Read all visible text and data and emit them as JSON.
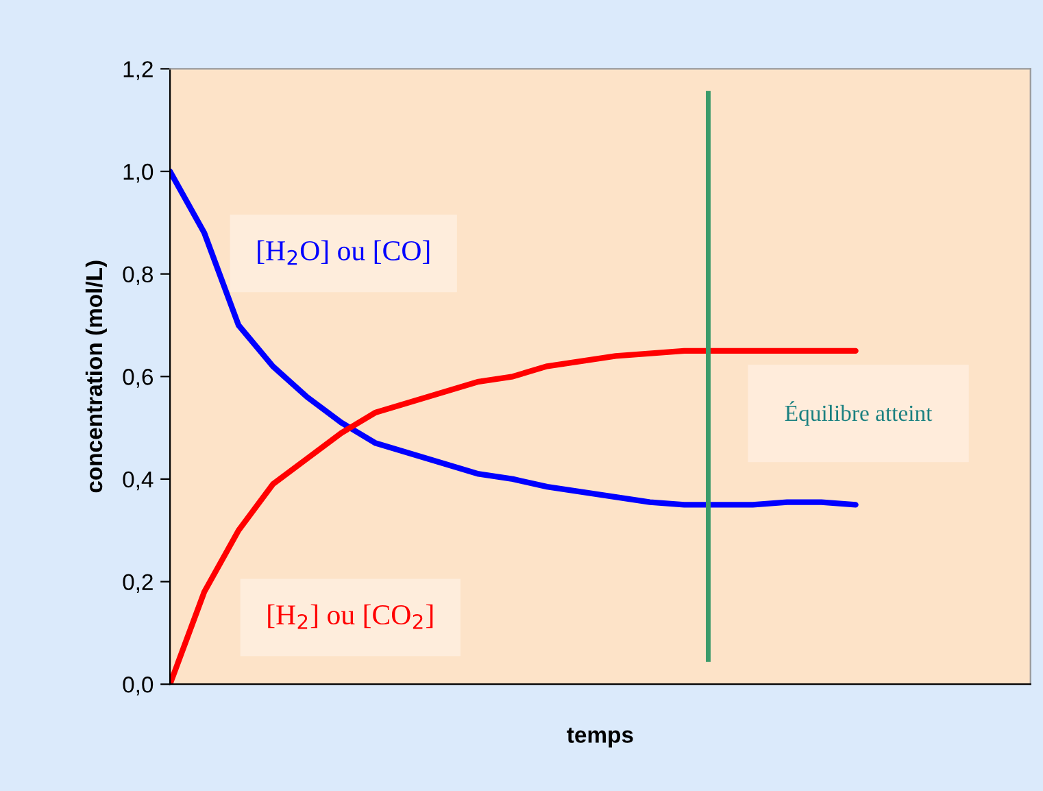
{
  "chart_data": {
    "type": "line",
    "xlabel": "temps",
    "ylabel": "concentration (mol/L)",
    "categories": [
      null,
      null,
      null,
      null,
      null,
      null,
      null,
      null,
      null,
      null,
      null,
      null,
      null,
      null,
      null,
      null,
      null,
      null,
      null,
      null,
      null
    ],
    "ylim": [
      0,
      1.2
    ],
    "yticks": [
      {
        "value": 0,
        "label": "0,0"
      },
      {
        "value": 0.2,
        "label": "0,2"
      },
      {
        "value": 0.4,
        "label": "0,4"
      },
      {
        "value": 0.6,
        "label": "0,6"
      },
      {
        "value": 0.8,
        "label": "0,8"
      },
      {
        "value": 1.0,
        "label": "1,0"
      },
      {
        "value": 1.2,
        "label": "1,2"
      }
    ],
    "tick_labels": "y",
    "grid": false,
    "legend": false,
    "series": [
      {
        "name": "[H$_{2}$O] ou [CO]",
        "color": "#0000ff",
        "values": [
          1.0,
          0.88,
          0.7,
          0.62,
          0.56,
          0.51,
          0.47,
          0.45,
          0.43,
          0.41,
          0.4,
          0.385,
          0.375,
          0.365,
          0.355,
          0.35,
          0.35,
          0.35,
          0.355,
          0.355,
          0.35
        ]
      },
      {
        "name": "[H$_{2}$] ou [CO$_{2}$]",
        "color": "#ff0000",
        "values": [
          0.0,
          0.18,
          0.3,
          0.39,
          0.44,
          0.49,
          0.53,
          0.55,
          0.57,
          0.59,
          0.6,
          0.62,
          0.63,
          0.64,
          0.645,
          0.65,
          0.65,
          0.65,
          0.65,
          0.65,
          0.65
        ]
      }
    ],
    "annotations": [
      "Équilibre atteint"
    ]
  }
}
